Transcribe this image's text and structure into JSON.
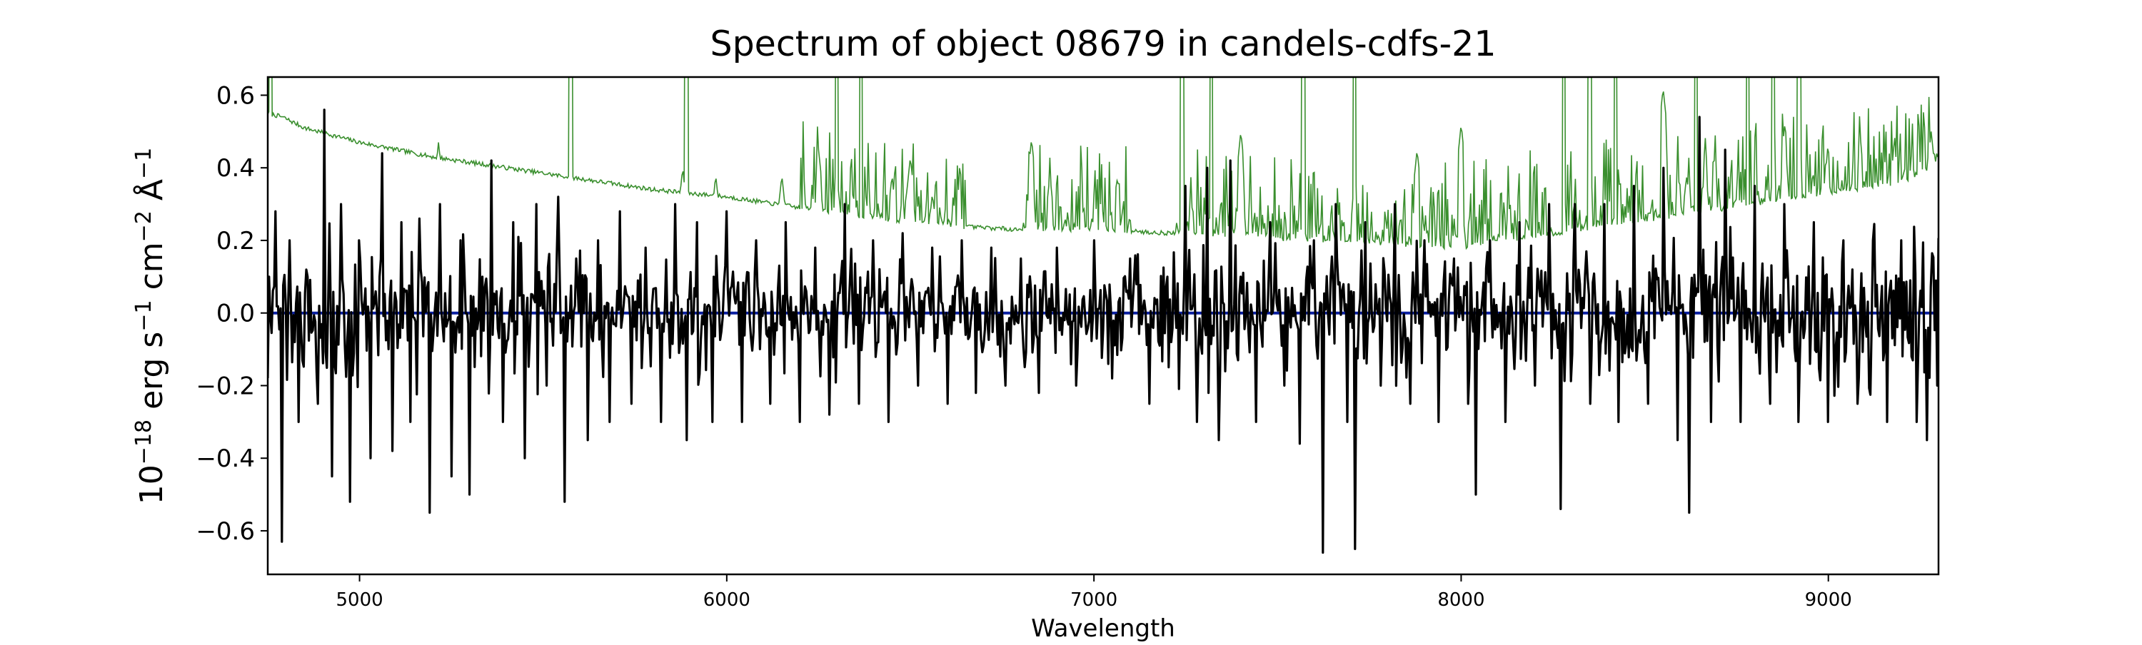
{
  "chart_data": {
    "type": "line",
    "title": "Spectrum of object 08679 in candels-cdfs-21",
    "xlabel": "Wavelength",
    "ylabel": {
      "prefix": "10",
      "sup1": "−18",
      "part2": " erg s",
      "sup2": "−1",
      "part3": " cm",
      "sup3": "−2",
      "part4": " Å",
      "sup4": "−1"
    },
    "xlim": [
      4750,
      9300
    ],
    "ylim": [
      -0.72,
      0.65
    ],
    "xticks": [
      5000,
      6000,
      7000,
      8000,
      9000
    ],
    "xtick_labels": [
      "5000",
      "6000",
      "7000",
      "8000",
      "9000"
    ],
    "yticks": [
      -0.6,
      -0.4,
      -0.2,
      0.0,
      0.2,
      0.4,
      0.6
    ],
    "ytick_labels": [
      "−0.6",
      "−0.4",
      "−0.2",
      "0.0",
      "0.2",
      "0.4",
      "0.6"
    ],
    "grid": false,
    "legend": "none",
    "series": [
      {
        "role": "flux",
        "color": "#000000",
        "generator": {
          "x_start": 4750,
          "x_end": 9300,
          "step": 3.5,
          "sigma": [
            [
              4750,
              0.22
            ],
            [
              5600,
              0.17
            ],
            [
              7000,
              0.13
            ],
            [
              7250,
              0.2
            ],
            [
              8000,
              0.18
            ],
            [
              9300,
              0.2
            ]
          ],
          "seed": 21
        },
        "x": [
          4755,
          4770,
          4790,
          4810,
          4835,
          4860,
          4885,
          4905,
          4925,
          4950,
          4975,
          5000,
          5030,
          5060,
          5090,
          5115,
          5140,
          5165,
          5190,
          5220,
          5250,
          5275,
          5300,
          5335,
          5360,
          5390,
          5420,
          5450,
          5480,
          5510,
          5540,
          5560,
          5590,
          5620,
          5650,
          5680,
          5710,
          5740,
          5780,
          5820,
          5860,
          5890,
          5920,
          5960,
          6000,
          6040,
          6080,
          6120,
          6160,
          6200,
          6240,
          6280,
          6320,
          6360,
          6400,
          6440,
          6480,
          6520,
          6560,
          6600,
          6640,
          6680,
          6720,
          6760,
          6800,
          6850,
          6900,
          6950,
          7000,
          7050,
          7100,
          7150,
          7200,
          7250,
          7280,
          7310,
          7340,
          7370,
          7400,
          7440,
          7480,
          7520,
          7560,
          7600,
          7625,
          7660,
          7690,
          7712,
          7740,
          7780,
          7820,
          7860,
          7900,
          7940,
          7980,
          8020,
          8040,
          8080,
          8120,
          8160,
          8200,
          8240,
          8270,
          8310,
          8350,
          8390,
          8430,
          8470,
          8510,
          8550,
          8590,
          8620,
          8650,
          8680,
          8720,
          8760,
          8800,
          8840,
          8880,
          8920,
          8960,
          9000,
          9040,
          9080,
          9120,
          9160,
          9200,
          9240,
          9270,
          9295
        ],
        "y": [
          0.1,
          0.28,
          -0.63,
          0.2,
          -0.3,
          0.1,
          -0.25,
          0.56,
          -0.45,
          0.3,
          -0.52,
          0.2,
          -0.4,
          0.44,
          -0.38,
          0.25,
          -0.3,
          0.12,
          -0.55,
          0.3,
          -0.45,
          0.2,
          -0.5,
          0.1,
          0.42,
          -0.3,
          0.25,
          -0.4,
          0.3,
          -0.2,
          0.32,
          -0.52,
          0.15,
          -0.35,
          0.2,
          -0.3,
          0.28,
          -0.25,
          0.18,
          -0.3,
          0.3,
          -0.35,
          0.25,
          -0.3,
          0.28,
          -0.3,
          0.2,
          -0.25,
          0.25,
          -0.3,
          0.18,
          -0.28,
          0.3,
          -0.25,
          0.2,
          -0.3,
          0.22,
          -0.2,
          0.18,
          -0.25,
          0.2,
          -0.22,
          0.18,
          -0.2,
          0.15,
          -0.22,
          0.18,
          -0.2,
          0.2,
          -0.18,
          0.15,
          -0.25,
          0.1,
          0.35,
          -0.3,
          0.4,
          -0.35,
          0.42,
          0.1,
          -0.3,
          0.25,
          -0.2,
          -0.36,
          0.2,
          -0.66,
          0.3,
          -0.3,
          -0.65,
          0.25,
          -0.2,
          0.3,
          -0.25,
          0.2,
          -0.3,
          0.15,
          -0.25,
          -0.5,
          0.2,
          -0.3,
          0.25,
          -0.2,
          0.3,
          -0.54,
          0.3,
          -0.25,
          0.3,
          -0.3,
          0.35,
          -0.25,
          0.4,
          -0.35,
          -0.55,
          0.54,
          -0.3,
          0.45,
          -0.3,
          0.35,
          -0.25,
          0.3,
          -0.3,
          0.25,
          -0.3,
          0.2,
          -0.25,
          0.2,
          -0.3,
          0.2,
          -0.3,
          -0.35,
          -0.2
        ]
      },
      {
        "role": "model",
        "color": "#0a1fa0",
        "x": [
          4750,
          9300
        ],
        "y": [
          0.0,
          0.0
        ]
      },
      {
        "role": "error",
        "color": "#3a8f2e",
        "baseline_x": [
          4750,
          4790,
          4850,
          5000,
          5200,
          5400,
          5600,
          5800,
          6000,
          6200,
          6400,
          6600,
          6800,
          7000,
          7200,
          7400,
          7600,
          7800,
          8000,
          8200,
          8400,
          8600,
          8800,
          9000,
          9200,
          9300
        ],
        "baseline_y": [
          0.55,
          0.54,
          0.51,
          0.47,
          0.43,
          0.4,
          0.37,
          0.34,
          0.32,
          0.29,
          0.26,
          0.24,
          0.23,
          0.23,
          0.22,
          0.21,
          0.2,
          0.19,
          0.18,
          0.21,
          0.24,
          0.27,
          0.3,
          0.33,
          0.36,
          0.4
        ],
        "spikes": [
          [
            4758,
            1.2
          ],
          [
            5575,
            1.2
          ],
          [
            5890,
            1.2
          ],
          [
            6300,
            1.2
          ],
          [
            6365,
            1.2
          ],
          [
            7240,
            1.2
          ],
          [
            7320,
            1.2
          ],
          [
            7570,
            1.2
          ],
          [
            7710,
            1.2
          ],
          [
            8280,
            1.2
          ],
          [
            8350,
            1.2
          ],
          [
            8420,
            1.2
          ],
          [
            8640,
            1.2
          ],
          [
            8780,
            1.2
          ],
          [
            8850,
            1.2
          ],
          [
            8920,
            1.2
          ]
        ],
        "bumps": [
          [
            5215,
            0.47
          ],
          [
            5880,
            0.4
          ],
          [
            5970,
            0.38
          ],
          [
            6150,
            0.38
          ],
          [
            6250,
            0.45
          ],
          [
            6450,
            0.38
          ],
          [
            6500,
            0.43
          ],
          [
            6560,
            0.33
          ],
          [
            6830,
            0.48
          ],
          [
            6880,
            0.38
          ],
          [
            7020,
            0.32
          ],
          [
            7400,
            0.5
          ],
          [
            7880,
            0.45
          ],
          [
            8000,
            0.52
          ],
          [
            8550,
            0.62
          ],
          [
            9180,
            0.47
          ],
          [
            9280,
            0.5
          ]
        ],
        "noisy_ranges": [
          [
            6200,
            6650
          ],
          [
            6800,
            7100
          ],
          [
            7220,
            8250
          ],
          [
            8280,
            9300
          ]
        ],
        "noise_amp": 0.08,
        "seed": 7
      }
    ]
  }
}
